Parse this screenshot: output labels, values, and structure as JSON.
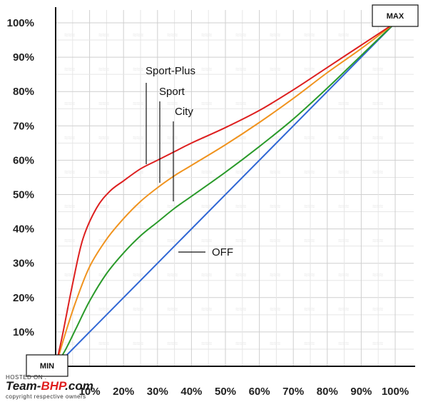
{
  "chart_data": {
    "type": "line",
    "x_ticks": [
      "10%",
      "20%",
      "30%",
      "40%",
      "50%",
      "60%",
      "70%",
      "80%",
      "90%",
      "100%"
    ],
    "y_ticks": [
      "10%",
      "20%",
      "30%",
      "40%",
      "50%",
      "60%",
      "70%",
      "80%",
      "90%",
      "100%"
    ],
    "xlim": [
      0,
      100
    ],
    "ylim": [
      0,
      100
    ],
    "grid": true,
    "corner_labels": {
      "min": "MIN",
      "max": "MAX"
    },
    "series": [
      {
        "name": "Sport-Plus",
        "color": "#dd1f1f",
        "x": [
          0,
          2,
          5,
          8,
          12,
          16,
          20,
          25,
          30,
          35,
          40,
          50,
          60,
          70,
          80,
          90,
          100
        ],
        "y": [
          0,
          9,
          24,
          37,
          46,
          51,
          54,
          57.5,
          60,
          62.5,
          65,
          69.5,
          74.5,
          80.5,
          87,
          93.5,
          100
        ]
      },
      {
        "name": "Sport",
        "color": "#f0931e",
        "x": [
          0,
          3,
          6,
          10,
          15,
          20,
          25,
          30,
          35,
          40,
          50,
          60,
          70,
          80,
          90,
          100
        ],
        "y": [
          0,
          10,
          19,
          29,
          37,
          43,
          48,
          52,
          55.5,
          58.5,
          64.5,
          71,
          78,
          85.5,
          92.5,
          100
        ]
      },
      {
        "name": "City",
        "color": "#2a9a2a",
        "x": [
          0,
          3,
          6,
          10,
          15,
          20,
          25,
          30,
          35,
          40,
          50,
          60,
          70,
          80,
          90,
          100
        ],
        "y": [
          0,
          5,
          11,
          19,
          27,
          33,
          38,
          42,
          46,
          49.5,
          56.5,
          64,
          72,
          81,
          90.5,
          100
        ]
      },
      {
        "name": "OFF",
        "color": "#2f66d4",
        "x": [
          0,
          100
        ],
        "y": [
          0,
          100
        ]
      }
    ]
  },
  "branding": {
    "hosted_on": "HOSTED ON :",
    "site_prefix": "Team-",
    "site_highlight": "BHP",
    "site_suffix": ".com",
    "copyright": "copyright respective owners"
  }
}
